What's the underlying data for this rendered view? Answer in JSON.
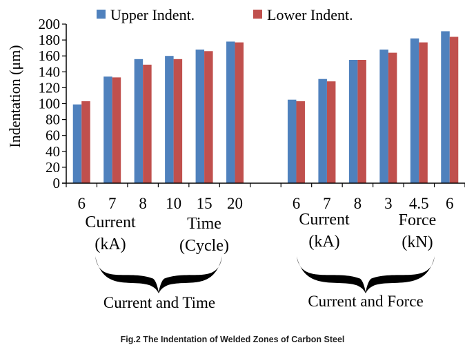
{
  "chart_data": {
    "type": "bar",
    "ylabel": "Indentation (μm)",
    "ylim": [
      0,
      200
    ],
    "yticks": [
      0,
      20,
      40,
      60,
      80,
      100,
      120,
      140,
      160,
      180,
      200
    ],
    "legend_position": "top",
    "series": [
      {
        "name": "Upper Indent.",
        "color": "#4f81bd"
      },
      {
        "name": "Lower Indent.",
        "color": "#c0504d"
      }
    ],
    "groups": [
      {
        "label": "6",
        "values": [
          99,
          103
        ]
      },
      {
        "label": "7",
        "values": [
          134,
          133
        ]
      },
      {
        "label": "8",
        "values": [
          156,
          149
        ]
      },
      {
        "label": "10",
        "values": [
          160,
          156
        ]
      },
      {
        "label": "15",
        "values": [
          168,
          166
        ]
      },
      {
        "label": "20",
        "values": [
          178,
          177
        ]
      },
      {
        "label": "",
        "values": [
          null,
          null
        ]
      },
      {
        "label": "6",
        "values": [
          105,
          103
        ]
      },
      {
        "label": "7",
        "values": [
          131,
          128
        ]
      },
      {
        "label": "8",
        "values": [
          155,
          155
        ]
      },
      {
        "label": "3",
        "values": [
          168,
          164
        ]
      },
      {
        "label": "4.5",
        "values": [
          182,
          177
        ]
      },
      {
        "label": "6",
        "values": [
          191,
          184
        ]
      }
    ],
    "group_labels": [
      {
        "line1": "Current",
        "line2": "(kA)"
      },
      {
        "line1": "Time",
        "line2": "(Cycle)"
      },
      {
        "line1": "Current",
        "line2": "(kA)"
      },
      {
        "line1": "Force",
        "line2": "(kN)"
      }
    ],
    "brace_labels": [
      "Current and Time",
      "Current and Force"
    ]
  },
  "caption": "Fig.2 The Indentation of Welded Zones of Carbon Steel"
}
